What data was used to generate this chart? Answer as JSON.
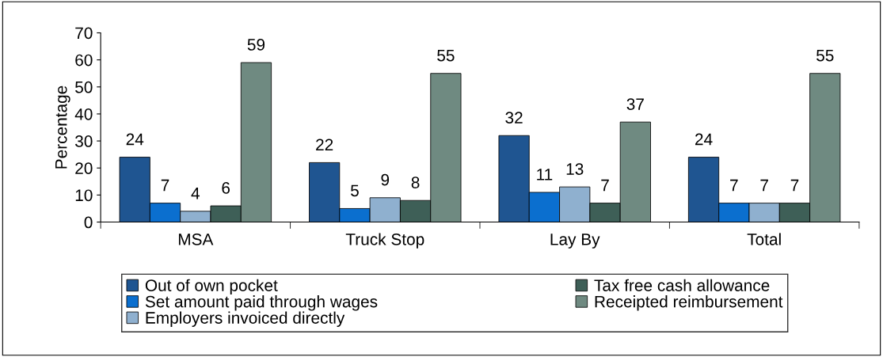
{
  "chart_data": {
    "type": "bar",
    "ylabel": "Percentage",
    "categories": [
      "MSA",
      "Truck Stop",
      "Lay By",
      "Total"
    ],
    "series": [
      {
        "name": "Out of own pocket",
        "color": "#1f5591",
        "values": [
          24,
          22,
          32,
          24
        ]
      },
      {
        "name": "Set amount paid through wages",
        "color": "#0b6fcf",
        "values": [
          7,
          5,
          11,
          7
        ]
      },
      {
        "name": "Employers invoiced directly",
        "color": "#8fb0cf",
        "values": [
          4,
          9,
          13,
          7
        ]
      },
      {
        "name": "Tax free cash allowance",
        "color": "#3e5f57",
        "values": [
          6,
          8,
          7,
          7
        ]
      },
      {
        "name": "Receipted reimbursement",
        "color": "#6f8a81",
        "values": [
          59,
          55,
          37,
          55
        ]
      }
    ],
    "ylim": [
      0,
      70
    ],
    "yticks": [
      0,
      10,
      20,
      30,
      40,
      50,
      60,
      70
    ],
    "data_labels": true,
    "legend": "bottom",
    "grid": false
  }
}
